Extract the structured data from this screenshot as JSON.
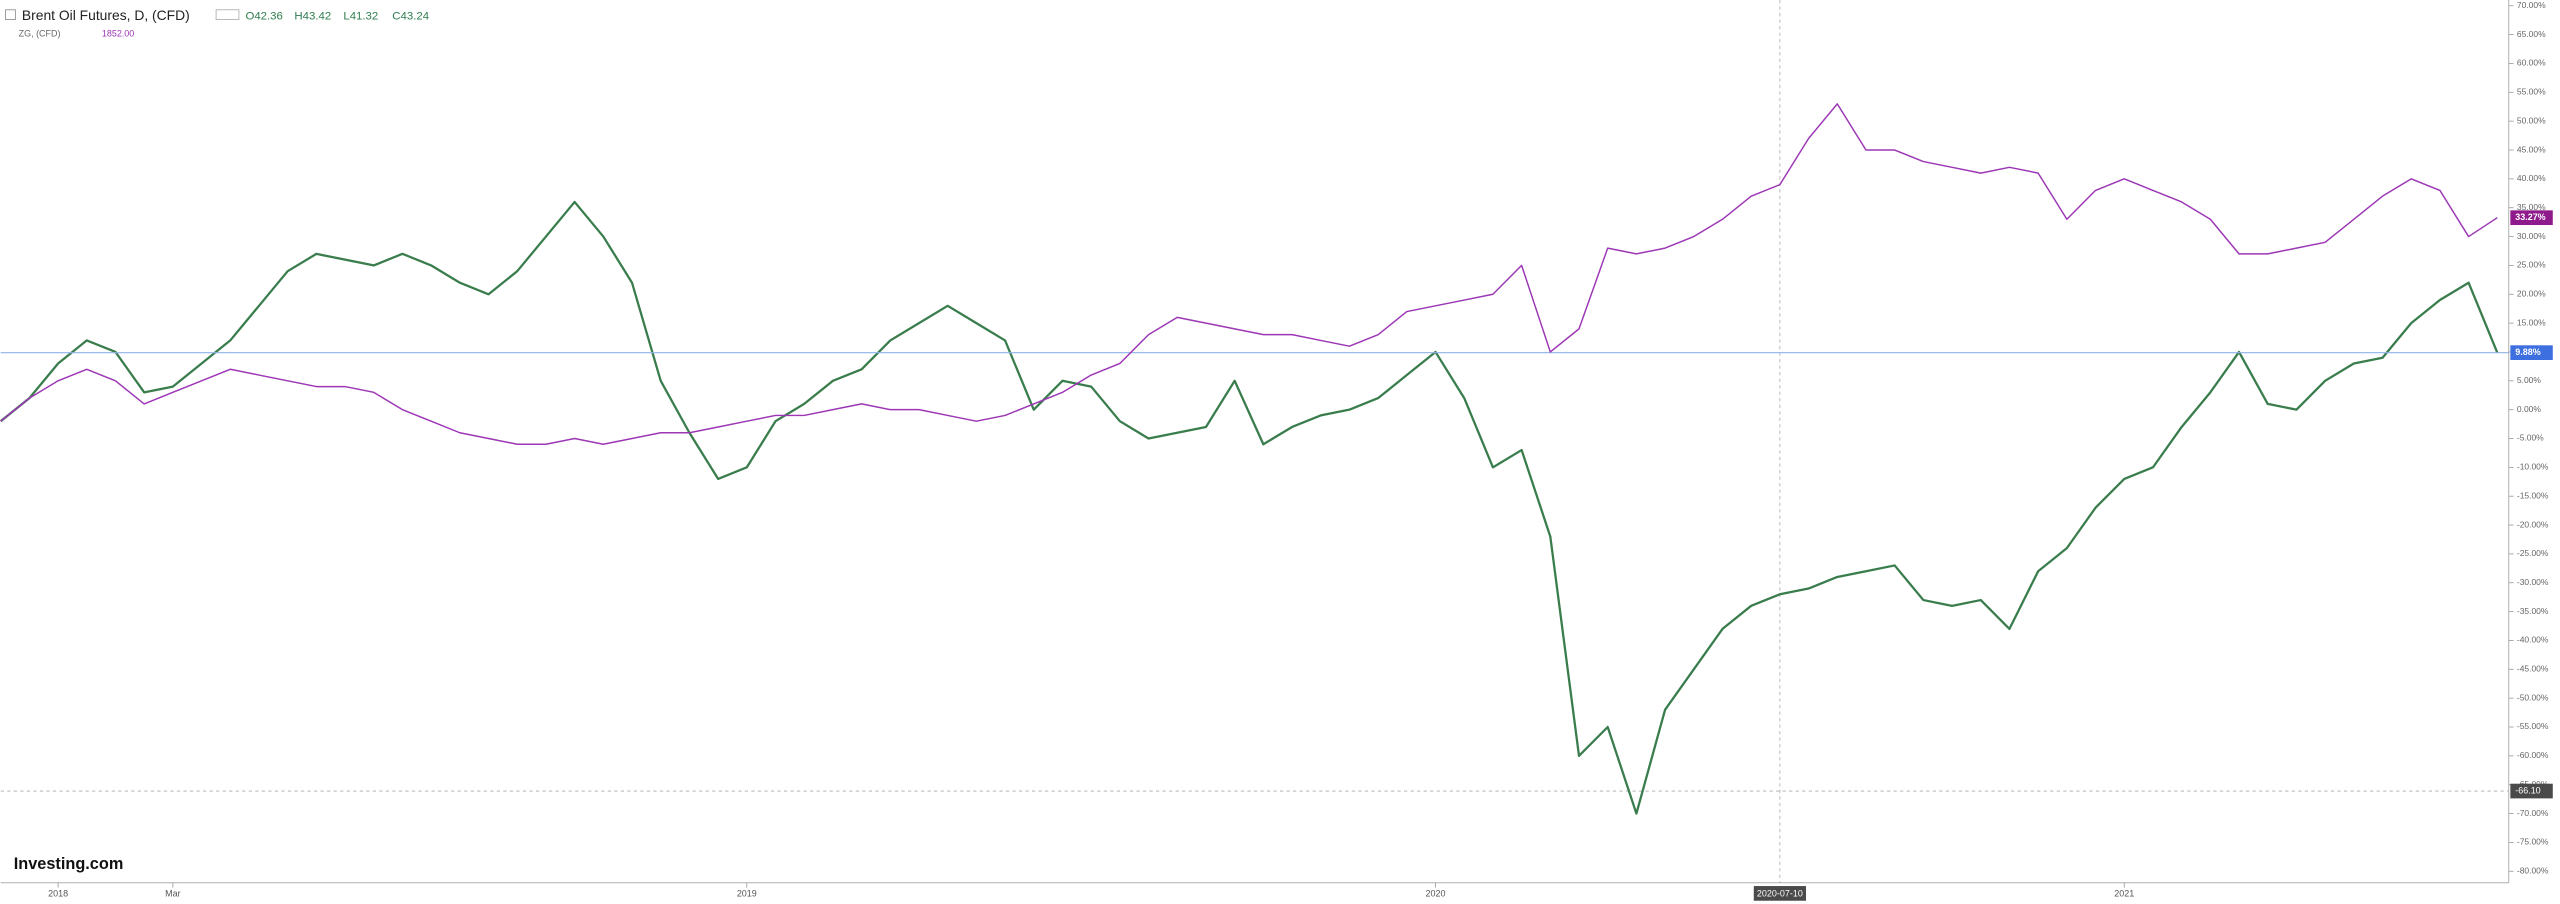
{
  "chart_data": {
    "type": "line",
    "title": "Brent Oil Futures, D, (CFD)",
    "ohlc": [
      "O42.36",
      "H43.42",
      "L41.32",
      "C43.24"
    ],
    "compare_title": "ZG, (CFD)",
    "compare_value": "1852.00",
    "brand": "Investing.com",
    "categories": [
      null,
      null,
      "2018",
      null,
      null,
      null,
      "Mar",
      null,
      null,
      null,
      null,
      null,
      null,
      null,
      null,
      null,
      null,
      null,
      null,
      null,
      null,
      null,
      null,
      null,
      null,
      null,
      "2019",
      null,
      null,
      null,
      null,
      null,
      null,
      null,
      null,
      null,
      null,
      null,
      null,
      null,
      null,
      null,
      null,
      null,
      null,
      null,
      null,
      null,
      null,
      null,
      "2020",
      null,
      null,
      null,
      null,
      null,
      null,
      null,
      null,
      null,
      null,
      null,
      "2020-07-10",
      null,
      null,
      null,
      null,
      null,
      null,
      null,
      null,
      null,
      null,
      null,
      "2021",
      null,
      null,
      null,
      null,
      null,
      null,
      null,
      null,
      null,
      null,
      null,
      null,
      null
    ],
    "crosshair_index": 62,
    "series": [
      {
        "name": "Brent Oil Futures",
        "color": "#3a7d4d",
        "last_label": "9.88%",
        "label_color": "#3d6fe0",
        "values": [
          -2,
          2,
          8,
          12,
          10,
          3,
          4,
          8,
          12,
          18,
          24,
          27,
          26,
          25,
          27,
          25,
          22,
          20,
          24,
          30,
          36,
          30,
          22,
          5,
          -4,
          -12,
          -10,
          -2,
          1,
          5,
          7,
          12,
          15,
          18,
          15,
          12,
          0,
          5,
          4,
          -2,
          -5,
          -4,
          -3,
          5,
          -6,
          -3,
          -1,
          0,
          2,
          6,
          10,
          2,
          -10,
          -7,
          -22,
          -60,
          -55,
          -70,
          -52,
          -45,
          -38,
          -34,
          -32,
          -31,
          -29,
          -28,
          -27,
          -33,
          -34,
          -33,
          -38,
          -28,
          -24,
          -17,
          -12,
          -10,
          -3,
          3,
          10,
          1,
          0,
          5,
          8,
          9,
          15,
          19,
          22,
          9.88
        ]
      },
      {
        "name": "ZG",
        "color": "#9c36b5",
        "last_label": "33.27%",
        "label_color": "#8e1a8c",
        "values": [
          -2,
          2,
          5,
          7,
          5,
          1,
          3,
          5,
          7,
          6,
          5,
          4,
          4,
          3,
          0,
          -2,
          -4,
          -5,
          -6,
          -6,
          -5,
          -6,
          -5,
          -4,
          -4,
          -3,
          -2,
          -1,
          -1,
          0,
          1,
          0,
          0,
          -1,
          -2,
          -1,
          1,
          3,
          6,
          8,
          13,
          16,
          15,
          14,
          13,
          13,
          12,
          11,
          13,
          17,
          18,
          19,
          20,
          25,
          10,
          14,
          28,
          27,
          28,
          30,
          33,
          37,
          39,
          47,
          53,
          45,
          45,
          43,
          42,
          41,
          42,
          41,
          33,
          38,
          40,
          38,
          36,
          33,
          27,
          27,
          28,
          29,
          33,
          37,
          40,
          38,
          30,
          33.27
        ]
      }
    ],
    "crosshair_y": {
      "value": -66.1,
      "label": "-66.10"
    },
    "ylim": [
      71,
      -82
    ],
    "yticks": [
      {
        "value": 70,
        "label": "70.00%"
      },
      {
        "value": 65,
        "label": "65.00%"
      },
      {
        "value": 60,
        "label": "60.00%"
      },
      {
        "value": 55,
        "label": "55.00%"
      },
      {
        "value": 50,
        "label": "50.00%"
      },
      {
        "value": 45,
        "label": "45.00%"
      },
      {
        "value": 40,
        "label": "40.00%"
      },
      {
        "value": 35,
        "label": "35.00%"
      },
      {
        "value": 30,
        "label": "30.00%"
      },
      {
        "value": 25,
        "label": "25.00%"
      },
      {
        "value": 20,
        "label": "20.00%"
      },
      {
        "value": 15,
        "label": "15.00%"
      },
      {
        "value": 10,
        "label": "10.00%"
      },
      {
        "value": 5,
        "label": "5.00%"
      },
      {
        "value": 0,
        "label": "0.00%"
      },
      {
        "value": -5,
        "label": "-5.00%"
      },
      {
        "value": -10,
        "label": "-10.00%"
      },
      {
        "value": -15,
        "label": "-15.00%"
      },
      {
        "value": -20,
        "label": "-20.00%"
      },
      {
        "value": -25,
        "label": "-25.00%"
      },
      {
        "value": -30,
        "label": "-30.00%"
      },
      {
        "value": -35,
        "label": "-35.00%"
      },
      {
        "value": -40,
        "label": "-40.00%"
      },
      {
        "value": -45,
        "label": "-45.00%"
      },
      {
        "value": -50,
        "label": "-50.00%"
      },
      {
        "value": -55,
        "label": "-55.00%"
      },
      {
        "value": -60,
        "label": "-60.00%"
      },
      {
        "value": -65,
        "label": "-65.00%"
      },
      {
        "value": -70,
        "label": "-70.00%"
      },
      {
        "value": -75,
        "label": "-75.00%"
      },
      {
        "value": -80,
        "label": "-80.00%"
      }
    ],
    "grid": false
  }
}
